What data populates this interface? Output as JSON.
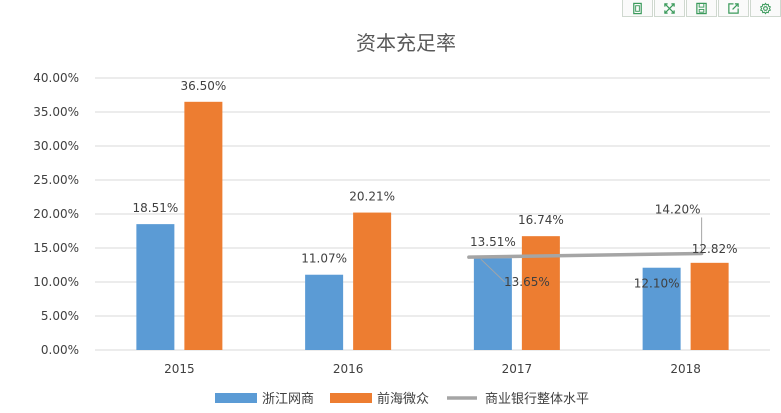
{
  "colors": {
    "series1": "#5B9BD5",
    "series2": "#ED7D31",
    "line": "#A5A5A5",
    "grid": "#D9D9D9",
    "toolbar_icon": "#3a9a5b"
  },
  "toolbar": {
    "icons": [
      "fit-icon",
      "fullscreen-icon",
      "save-icon",
      "share-icon",
      "settings-icon"
    ]
  },
  "chart_data": {
    "type": "bar",
    "title": "资本充足率",
    "categories": [
      "2015",
      "2016",
      "2017",
      "2018"
    ],
    "series": [
      {
        "name": "浙江网商",
        "kind": "bar",
        "values": [
          18.51,
          11.07,
          13.51,
          12.1
        ],
        "labels": [
          "18.51%",
          "11.07%",
          "13.51%",
          "12.10%"
        ]
      },
      {
        "name": "前海微众",
        "kind": "bar",
        "values": [
          36.5,
          20.21,
          16.74,
          12.82
        ],
        "labels": [
          "36.50%",
          "20.21%",
          "16.74%",
          "12.82%"
        ]
      },
      {
        "name": "商业银行整体水平",
        "kind": "line",
        "x": [
          "2017",
          "2018"
        ],
        "values": [
          13.65,
          14.2
        ],
        "labels": [
          "13.65%",
          "14.20%"
        ]
      }
    ],
    "ylim": [
      0,
      40
    ],
    "yticks": [
      "0.00%",
      "5.00%",
      "10.00%",
      "15.00%",
      "20.00%",
      "25.00%",
      "30.00%",
      "35.00%",
      "40.00%"
    ],
    "grid": true,
    "legend": "bottom"
  }
}
